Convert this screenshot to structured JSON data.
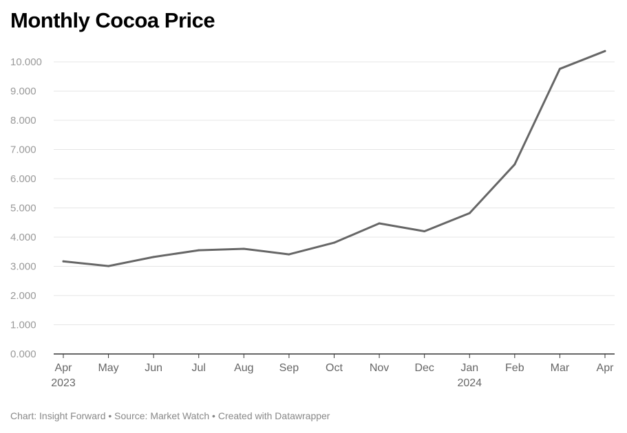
{
  "chart_data": {
    "type": "line",
    "title": "Monthly Cocoa Price",
    "xlabel": "",
    "ylabel": "",
    "ylim": [
      0,
      10000
    ],
    "yticks": [
      0,
      1000,
      2000,
      3000,
      4000,
      5000,
      6000,
      7000,
      8000,
      9000,
      10000
    ],
    "ytick_labels": [
      "0.000",
      "1.000",
      "2.000",
      "3.000",
      "4.000",
      "5.000",
      "6.000",
      "7.000",
      "8.000",
      "9.000",
      "10.000"
    ],
    "categories": [
      "Apr 2023",
      "May 2023",
      "Jun 2023",
      "Jul 2023",
      "Aug 2023",
      "Sep 2023",
      "Oct 2023",
      "Nov 2023",
      "Dec 2023",
      "Jan 2024",
      "Feb 2024",
      "Mar 2024",
      "Apr 2024"
    ],
    "xtick_labels": [
      {
        "month": "Apr",
        "year": "2023"
      },
      {
        "month": "May",
        "year": ""
      },
      {
        "month": "Jun",
        "year": ""
      },
      {
        "month": "Jul",
        "year": ""
      },
      {
        "month": "Aug",
        "year": ""
      },
      {
        "month": "Sep",
        "year": ""
      },
      {
        "month": "Oct",
        "year": ""
      },
      {
        "month": "Nov",
        "year": ""
      },
      {
        "month": "Dec",
        "year": ""
      },
      {
        "month": "Jan",
        "year": "2024"
      },
      {
        "month": "Feb",
        "year": ""
      },
      {
        "month": "Mar",
        "year": ""
      },
      {
        "month": "Apr",
        "year": ""
      }
    ],
    "series": [
      {
        "values": [
          3170,
          3010,
          3320,
          3550,
          3600,
          3410,
          3810,
          4470,
          4200,
          4820,
          6490,
          9760,
          10370
        ]
      }
    ],
    "grid": true,
    "legend": "none",
    "line_color": "#666666",
    "gridline_color": "#e5e5e5",
    "axis_color": "#333333"
  },
  "footer": {
    "text": "Chart: Insight Forward • Source: Market Watch • Created with Datawrapper"
  }
}
